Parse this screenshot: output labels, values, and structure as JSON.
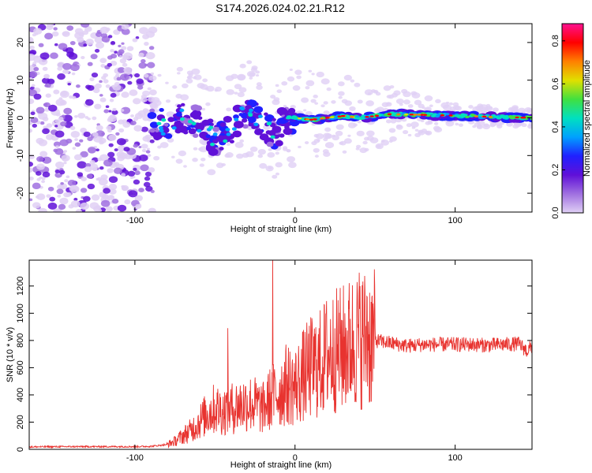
{
  "title": "S174.2026.024.02.21.R12",
  "colors": {
    "line": "#e8332f",
    "axis": "#000000",
    "colormap": [
      "#e0d0f5",
      "#a070e0",
      "#6010d8",
      "#2020ff",
      "#00a0ff",
      "#00e0c0",
      "#40e040",
      "#e0e000",
      "#ff8000",
      "#ff0000",
      "#ff1090"
    ]
  },
  "chart_data": [
    {
      "type": "heatmap",
      "title": "S174.2026.024.02.21.R12",
      "xlabel": "Height of straight line (km)",
      "ylabel": "Frequency (Hz)",
      "xlim": [
        -166,
        148
      ],
      "ylim": [
        -25,
        25
      ],
      "xticks": [
        -100,
        0,
        100
      ],
      "yticks": [
        -20,
        -10,
        0,
        10,
        20
      ],
      "noise_region_x": [
        -166,
        -92
      ],
      "signal_track": {
        "x": [
          -90,
          -80,
          -70,
          -60,
          -50,
          -40,
          -30,
          -20,
          -12,
          -5,
          0,
          10,
          20,
          30,
          40,
          50,
          60,
          80,
          100,
          120,
          148
        ],
        "freq": [
          -1,
          -2,
          0,
          -1,
          -6,
          -3,
          2,
          -2,
          -4,
          0,
          0,
          -0.5,
          0,
          0.5,
          0,
          0.5,
          1,
          0.8,
          0.6,
          0.3,
          0
        ]
      },
      "colorbar": {
        "label": "Normalized spectral amplitude",
        "range": [
          0.0,
          0.88
        ],
        "ticks": [
          "0.0",
          "0.2",
          "0.4",
          "0.6",
          "0.8"
        ],
        "tick_values": [
          0.0,
          0.2,
          0.4,
          0.6,
          0.8
        ]
      }
    },
    {
      "type": "line",
      "xlabel": "Height of straight line (km)",
      "ylabel": "SNR (10 * v/v)",
      "xlim": [
        -166,
        148
      ],
      "ylim": [
        0,
        1390
      ],
      "xticks": [
        -100,
        0,
        100
      ],
      "yticks": [
        0,
        200,
        400,
        600,
        800,
        1000,
        1200
      ],
      "series": [
        {
          "name": "SNR",
          "x": [
            -166,
            -140,
            -120,
            -100,
            -90,
            -80,
            -75,
            -70,
            -65,
            -60,
            -55,
            -50,
            -45,
            -40,
            -35,
            -30,
            -25,
            -20,
            -15,
            -10,
            -5,
            0,
            5,
            10,
            15,
            20,
            25,
            30,
            35,
            40,
            45,
            50,
            55,
            60,
            70,
            80,
            90,
            100,
            110,
            120,
            130,
            140,
            145,
            148
          ],
          "y": [
            18,
            20,
            20,
            20,
            22,
            35,
            60,
            100,
            140,
            200,
            260,
            300,
            280,
            300,
            320,
            340,
            330,
            300,
            380,
            420,
            480,
            460,
            540,
            600,
            620,
            700,
            720,
            740,
            780,
            820,
            820,
            800,
            790,
            780,
            760,
            770,
            770,
            770,
            770,
            765,
            770,
            775,
            720,
            760
          ]
        }
      ],
      "spikes": [
        {
          "x": -42,
          "y": 890
        },
        {
          "x": -14,
          "y": 1390
        },
        {
          "x": 45,
          "y": 1120
        }
      ]
    }
  ]
}
